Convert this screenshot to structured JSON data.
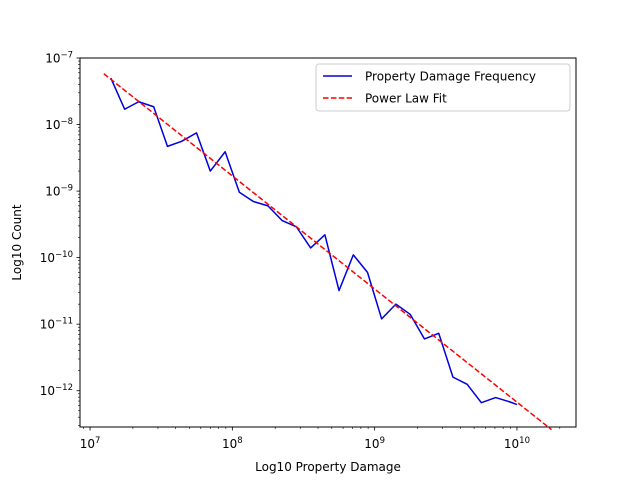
{
  "chart_data": {
    "type": "line",
    "xlabel": "Log10 Property Damage",
    "ylabel": "Log10 Count",
    "xscale": "log",
    "yscale": "log",
    "xlim": [
      8500000.0,
      26000000000.0
    ],
    "ylim": [
      2.85e-13,
      1e-07
    ],
    "x_ticks": [
      {
        "value": 10000000.0,
        "base": "10",
        "exp": "7"
      },
      {
        "value": 100000000.0,
        "base": "10",
        "exp": "8"
      },
      {
        "value": 1000000000.0,
        "base": "10",
        "exp": "9"
      },
      {
        "value": 10000000000.0,
        "base": "10",
        "exp": "10"
      }
    ],
    "y_ticks": [
      {
        "value": 1e-12,
        "base": "10",
        "exp": "−12"
      },
      {
        "value": 1e-11,
        "base": "10",
        "exp": "−11"
      },
      {
        "value": 1e-10,
        "base": "10",
        "exp": "−10"
      },
      {
        "value": 1e-09,
        "base": "10",
        "exp": "−9"
      },
      {
        "value": 1e-08,
        "base": "10",
        "exp": "−8"
      },
      {
        "value": 1e-07,
        "base": "10",
        "exp": "−7"
      }
    ],
    "grid": false,
    "legend_position": "top-right",
    "series": [
      {
        "name": "Property Damage Frequency",
        "color": "#0000dd",
        "style": "solid",
        "x": [
          14000000.0,
          17500000.0,
          22000000.0,
          28000000.0,
          35000000.0,
          44000000.0,
          56000000.0,
          70000000.0,
          89000000.0,
          112000000.0,
          140000000.0,
          178000000.0,
          224000000.0,
          282000000.0,
          355000000.0,
          447000000.0,
          562000000.0,
          708000000.0,
          891000000.0,
          1120000000.0,
          1410000000.0,
          1780000000.0,
          2240000000.0,
          2820000000.0,
          3550000000.0,
          4470000000.0,
          5620000000.0,
          7080000000.0,
          8910000000.0,
          10000000000.0
        ],
        "y": [
          5e-08,
          1.7e-08,
          2.2e-08,
          1.85e-08,
          4.7e-09,
          5.6e-09,
          7.5e-09,
          2e-09,
          3.9e-09,
          9.6e-10,
          7e-10,
          6e-10,
          3.6e-10,
          2.9e-10,
          1.4e-10,
          2.2e-10,
          3.2e-11,
          1.1e-10,
          6e-11,
          1.2e-11,
          2e-11,
          1.4e-11,
          6e-12,
          7.3e-12,
          1.6e-12,
          1.25e-12,
          6.6e-13,
          7.9e-13,
          6.8e-13,
          6.2e-13
        ]
      },
      {
        "name": "Power Law Fit",
        "color": "#ff0000",
        "style": "dashed",
        "x": [
          12500000.0,
          17500000000.0
        ],
        "y": [
          5.8e-08,
          2.6e-13
        ]
      }
    ]
  }
}
